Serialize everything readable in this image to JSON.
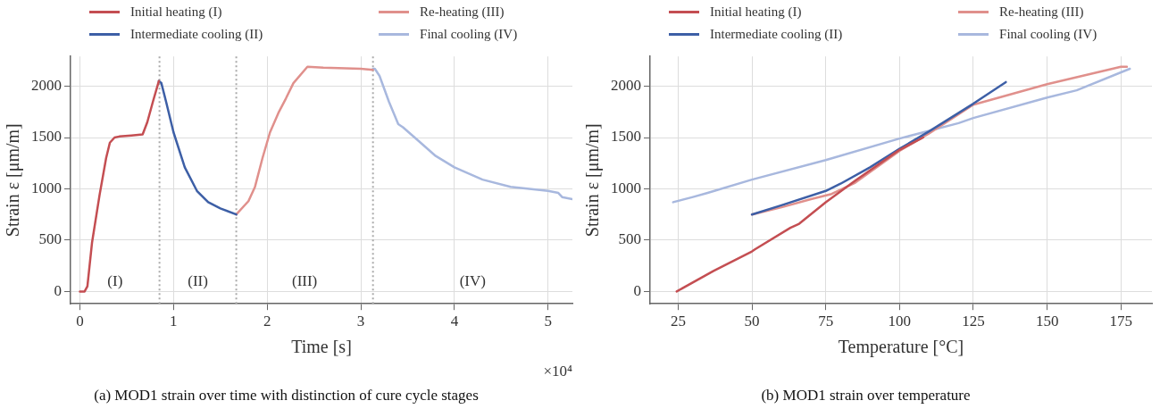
{
  "chart_data": [
    {
      "type": "line",
      "title": "(a) MOD1 strain over time with distinction of cure cycle stages",
      "xlabel": "Time [s]",
      "ylabel": "Strain ε [μm/m]",
      "xlim": [
        -0.1,
        5.26
      ],
      "xticks": [
        0,
        1,
        2,
        3,
        4,
        5
      ],
      "ylim": [
        -120,
        2290
      ],
      "yticks": [
        0,
        500,
        1000,
        1500,
        2000
      ],
      "grid": true,
      "legend": "top",
      "marker": "none",
      "series": [
        {
          "name": "Initial heating (I)",
          "color": "#c44e52",
          "x": [
            0,
            0.05,
            0.08,
            0.13,
            0.21,
            0.28,
            0.32,
            0.37,
            0.42,
            0.55,
            0.67,
            0.72,
            0.78,
            0.843
          ],
          "values": [
            0,
            0,
            50,
            480,
            940,
            1300,
            1450,
            1500,
            1510,
            1520,
            1530,
            1650,
            1850,
            2050
          ]
        },
        {
          "name": "Intermediate cooling (II)",
          "color": "#3d5fa6",
          "x": [
            0.843,
            0.87,
            0.92,
            1.0,
            1.12,
            1.25,
            1.37,
            1.5,
            1.67
          ],
          "values": [
            2050,
            2030,
            1850,
            1550,
            1210,
            980,
            870,
            810,
            750
          ]
        },
        {
          "name": "Re-heating (III)",
          "color": "#e0908c",
          "x": [
            1.67,
            1.8,
            1.87,
            1.95,
            2.03,
            2.12,
            2.2,
            2.28,
            2.43,
            2.6,
            3.0,
            3.13
          ],
          "values": [
            750,
            880,
            1020,
            1300,
            1550,
            1740,
            1880,
            2030,
            2190,
            2180,
            2170,
            2160
          ]
        },
        {
          "name": "Final cooling (IV)",
          "color": "#a8b8de",
          "x": [
            3.13,
            3.15,
            3.2,
            3.3,
            3.4,
            3.45,
            3.6,
            3.8,
            4.0,
            4.3,
            4.6,
            5.0,
            5.11,
            5.15,
            5.26
          ],
          "values": [
            2170,
            2170,
            2100,
            1850,
            1630,
            1600,
            1480,
            1320,
            1210,
            1090,
            1020,
            980,
            960,
            920,
            900
          ]
        }
      ],
      "ref_lines": [
        {
          "axis": "x",
          "value": 0.85,
          "color": "#aaaaaa",
          "line_style": "dotted"
        },
        {
          "axis": "x",
          "value": 1.67,
          "color": "#aaaaaa",
          "line_style": "dotted"
        },
        {
          "axis": "x",
          "value": 3.13,
          "color": "#aaaaaa",
          "line_style": "dotted"
        }
      ],
      "annotations": [
        "(I)",
        "(II)",
        "(III)",
        "(IV)",
        "×10⁴"
      ]
    },
    {
      "type": "line",
      "title": "(b) MOD1 strain over temperature",
      "xlabel": "Temperature [°C]",
      "ylabel": "Strain ε [μm/m]",
      "xlim": [
        15.5,
        185.5
      ],
      "xticks": [
        25,
        50,
        75,
        100,
        125,
        150,
        175
      ],
      "ylim": [
        -120,
        2290
      ],
      "yticks": [
        0,
        500,
        1000,
        1500,
        2000
      ],
      "grid": true,
      "legend": "top",
      "marker": "none",
      "series": [
        {
          "name": "Initial heating (I)",
          "color": "#c44e52",
          "x": [
            24.5,
            37,
            50,
            51,
            63,
            66,
            75,
            85,
            100,
            108
          ],
          "values": [
            0,
            200,
            390,
            410,
            620,
            660,
            870,
            1080,
            1380,
            1500
          ]
        },
        {
          "name": "Intermediate cooling (II)",
          "color": "#3d5fa6",
          "x": [
            136,
            125,
            110,
            100,
            90,
            80,
            75,
            60,
            50
          ],
          "values": [
            2040,
            1830,
            1560,
            1390,
            1210,
            1050,
            980,
            840,
            750
          ]
        },
        {
          "name": "Re-heating (III)",
          "color": "#e0908c",
          "x": [
            50,
            60,
            70,
            77,
            85,
            100,
            110,
            125,
            150,
            175,
            177
          ],
          "values": [
            750,
            820,
            900,
            950,
            1060,
            1370,
            1540,
            1820,
            2020,
            2190,
            2190
          ]
        },
        {
          "name": "Final cooling (IV)",
          "color": "#a8b8de",
          "x": [
            178,
            160,
            150,
            125,
            120,
            100,
            75,
            50,
            35,
            30,
            23.3
          ],
          "values": [
            2170,
            1960,
            1890,
            1690,
            1640,
            1490,
            1280,
            1090,
            960,
            920,
            870
          ]
        }
      ]
    }
  ]
}
